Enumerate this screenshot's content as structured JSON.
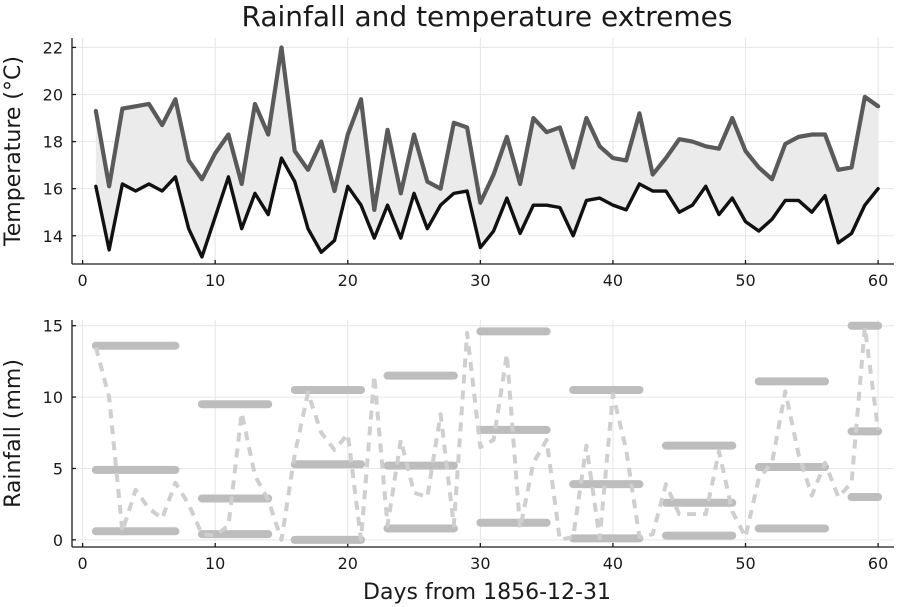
{
  "chart_data": {
    "title": "Rainfall and temperature extremes",
    "xlabel": "Days from 1856-12-31",
    "panels": [
      {
        "type": "area",
        "ylabel": "Temperature (°C)",
        "xlim": [
          -0.8,
          61.2
        ],
        "ylim": [
          12.8,
          22.4
        ],
        "xticks": [
          0,
          10,
          20,
          30,
          40,
          50,
          60
        ],
        "yticks": [
          14,
          16,
          18,
          20,
          22
        ],
        "grid": true,
        "band_color": "#ebebeb",
        "x": [
          1,
          2,
          3,
          4,
          5,
          6,
          7,
          8,
          9,
          10,
          11,
          12,
          13,
          14,
          15,
          16,
          17,
          18,
          19,
          20,
          21,
          22,
          23,
          24,
          25,
          26,
          27,
          28,
          29,
          30,
          31,
          32,
          33,
          34,
          35,
          36,
          37,
          38,
          39,
          40,
          41,
          42,
          43,
          44,
          45,
          46,
          47,
          48,
          49,
          50,
          51,
          52,
          53,
          54,
          55,
          56,
          57,
          58,
          59,
          60
        ],
        "series": [
          {
            "color": "#5a5a5a",
            "values": [
              19.3,
              16.1,
              19.4,
              19.5,
              19.6,
              18.7,
              19.8,
              17.2,
              16.4,
              17.5,
              18.3,
              16.2,
              19.6,
              18.3,
              22.0,
              17.6,
              16.8,
              18.0,
              15.9,
              18.3,
              19.8,
              15.1,
              18.5,
              15.8,
              18.3,
              16.3,
              16.0,
              18.8,
              18.6,
              15.4,
              16.6,
              18.2,
              16.2,
              19.0,
              18.4,
              18.6,
              16.9,
              19.0,
              17.8,
              17.3,
              17.2,
              19.2,
              16.6,
              17.3,
              18.1,
              18.0,
              17.8,
              17.7,
              19.0,
              17.6,
              16.9,
              16.4,
              17.9,
              18.2,
              18.3,
              18.3,
              16.8,
              16.9,
              19.9,
              19.5
            ]
          },
          {
            "color": "#111111",
            "values": [
              16.1,
              13.4,
              16.2,
              15.9,
              16.2,
              15.9,
              16.5,
              14.3,
              13.1,
              14.8,
              16.5,
              14.3,
              15.8,
              14.9,
              17.3,
              16.3,
              14.3,
              13.3,
              13.8,
              16.1,
              15.3,
              13.9,
              15.3,
              13.9,
              15.8,
              14.3,
              15.3,
              15.8,
              15.9,
              13.5,
              14.2,
              15.6,
              14.1,
              15.3,
              15.3,
              15.2,
              14.0,
              15.5,
              15.6,
              15.3,
              15.1,
              16.2,
              15.9,
              15.9,
              15.0,
              15.3,
              16.1,
              14.9,
              15.6,
              14.6,
              14.2,
              14.7,
              15.5,
              15.5,
              15.0,
              15.7,
              13.7,
              14.1,
              15.3,
              16.0
            ]
          }
        ]
      },
      {
        "type": "line",
        "ylabel": "Rainfall (mm)",
        "xlim": [
          -0.8,
          61.2
        ],
        "ylim": [
          -0.5,
          15.4
        ],
        "xticks": [
          0,
          10,
          20,
          30,
          40,
          50,
          60
        ],
        "yticks": [
          0,
          5,
          10,
          15
        ],
        "grid": true,
        "line_color": "#cfcfcf",
        "segment_color": "#bdbdbd",
        "x": [
          1,
          2,
          3,
          4,
          5,
          6,
          7,
          8,
          9,
          10,
          11,
          12,
          13,
          14,
          15,
          16,
          17,
          18,
          19,
          20,
          21,
          22,
          23,
          24,
          25,
          26,
          27,
          28,
          29,
          30,
          31,
          32,
          33,
          34,
          35,
          36,
          37,
          38,
          39,
          40,
          41,
          42,
          43,
          44,
          45,
          46,
          47,
          48,
          49,
          50,
          51,
          52,
          53,
          54,
          55,
          56,
          57,
          58,
          59,
          60
        ],
        "rainfall": [
          13.5,
          10.0,
          0.6,
          3.5,
          2.2,
          1.5,
          4.0,
          2.5,
          0.4,
          0.3,
          1.0,
          8.9,
          4.5,
          2.8,
          0.0,
          6.0,
          10.3,
          7.5,
          6.3,
          7.4,
          0.0,
          11.5,
          1.0,
          7.0,
          3.3,
          3.0,
          8.8,
          1.0,
          14.5,
          6.5,
          7.0,
          13.0,
          0.8,
          5.4,
          7.0,
          0.0,
          0.2,
          6.6,
          0.1,
          10.2,
          6.3,
          0.2,
          0.4,
          3.9,
          1.8,
          1.8,
          1.8,
          6.2,
          2.0,
          0.2,
          4.3,
          5.4,
          10.4,
          6.0,
          3.1,
          5.4,
          3.0,
          4.0,
          14.9,
          7.7
        ],
        "segments": [
          {
            "x0": 1,
            "x1": 7,
            "y": 13.6
          },
          {
            "x0": 1,
            "x1": 7,
            "y": 4.9
          },
          {
            "x0": 1,
            "x1": 7,
            "y": 0.6
          },
          {
            "x0": 9,
            "x1": 14,
            "y": 9.5
          },
          {
            "x0": 9,
            "x1": 14,
            "y": 2.9
          },
          {
            "x0": 9,
            "x1": 14,
            "y": 0.4
          },
          {
            "x0": 16,
            "x1": 21,
            "y": 10.5
          },
          {
            "x0": 16,
            "x1": 21,
            "y": 5.3
          },
          {
            "x0": 16,
            "x1": 21,
            "y": 0.0
          },
          {
            "x0": 23,
            "x1": 28,
            "y": 11.5
          },
          {
            "x0": 23,
            "x1": 28,
            "y": 5.2
          },
          {
            "x0": 23,
            "x1": 28,
            "y": 0.8
          },
          {
            "x0": 30,
            "x1": 35,
            "y": 14.6
          },
          {
            "x0": 30,
            "x1": 35,
            "y": 7.7
          },
          {
            "x0": 30,
            "x1": 35,
            "y": 1.2
          },
          {
            "x0": 37,
            "x1": 42,
            "y": 10.5
          },
          {
            "x0": 37,
            "x1": 42,
            "y": 3.9
          },
          {
            "x0": 37,
            "x1": 42,
            "y": 0.1
          },
          {
            "x0": 44,
            "x1": 49,
            "y": 6.6
          },
          {
            "x0": 44,
            "x1": 49,
            "y": 2.6
          },
          {
            "x0": 44,
            "x1": 49,
            "y": 0.3
          },
          {
            "x0": 51,
            "x1": 56,
            "y": 11.1
          },
          {
            "x0": 51,
            "x1": 56,
            "y": 5.1
          },
          {
            "x0": 51,
            "x1": 56,
            "y": 0.8
          },
          {
            "x0": 58,
            "x1": 60,
            "y": 15.0
          },
          {
            "x0": 58,
            "x1": 60,
            "y": 7.6
          },
          {
            "x0": 58,
            "x1": 60,
            "y": 3.0
          }
        ]
      }
    ]
  }
}
